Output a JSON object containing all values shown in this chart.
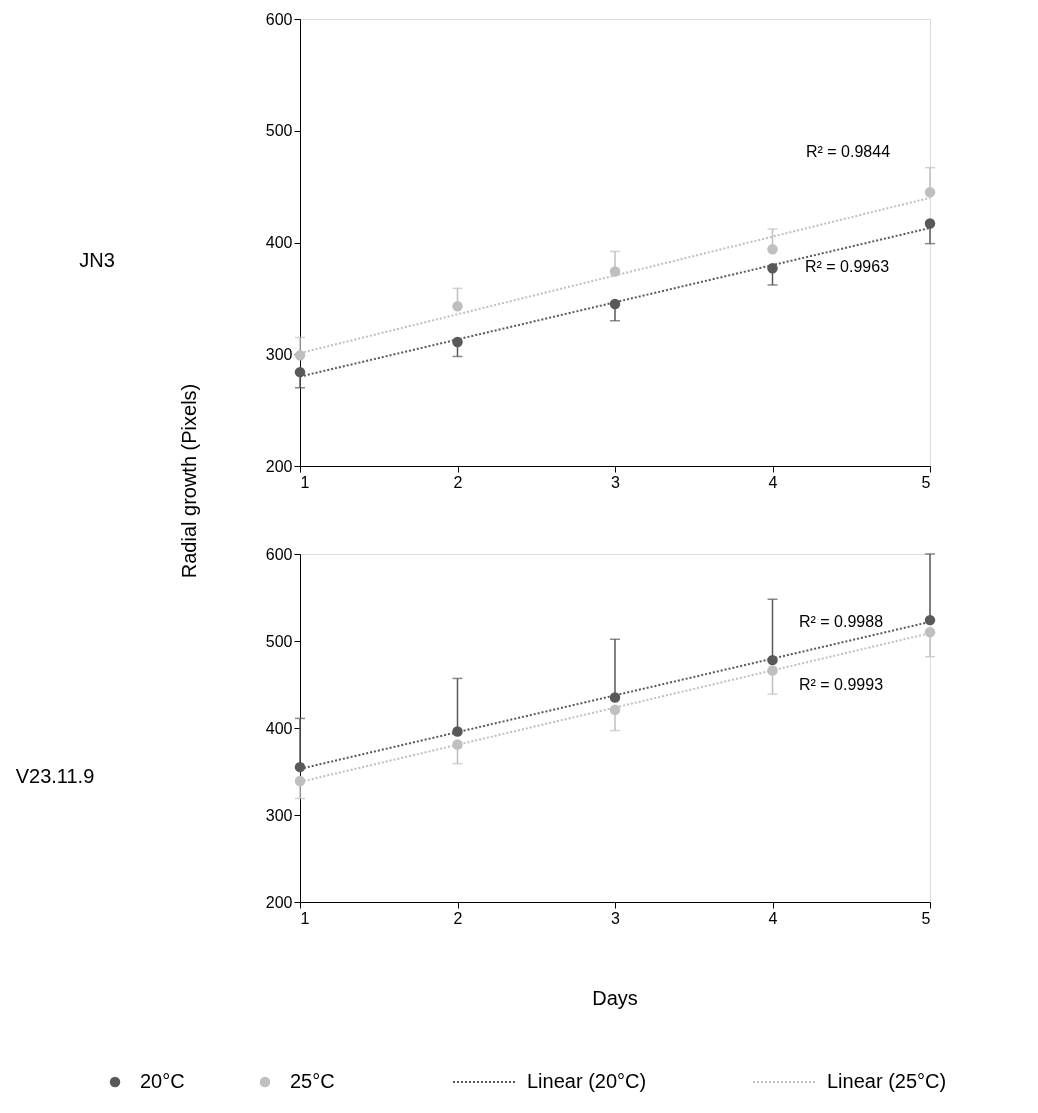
{
  "chart_data": [
    {
      "type": "scatter",
      "ylabel": "Radial growth (Pixels)",
      "xlim": [
        1,
        5
      ],
      "xticks": [
        1,
        2,
        3,
        4,
        5
      ],
      "ylim": [
        200,
        600
      ],
      "yticks": [
        200,
        300,
        400,
        500,
        600
      ],
      "grid": false,
      "series": [
        {
          "color": "#595959",
          "marker": "circle",
          "x": [
            1,
            2,
            3,
            4,
            5
          ],
          "values": [
            284,
            311,
            345,
            377,
            417
          ],
          "errors": [
            [
              270,
              284
            ],
            [
              298,
              311
            ],
            [
              330,
              345
            ],
            [
              362,
              377
            ],
            [
              399,
              417
            ]
          ]
        },
        {
          "color": "#bfbfbf",
          "marker": "circle",
          "x": [
            1,
            2,
            3,
            4,
            5
          ],
          "values": [
            299,
            343,
            374,
            394,
            445
          ],
          "errors": [
            [
              299,
              315
            ],
            [
              343,
              359
            ],
            [
              374,
              392
            ],
            [
              394,
              412
            ],
            [
              445,
              467
            ]
          ]
        },
        {
          "type": "line",
          "marker": "none",
          "line_style": "dotted",
          "color": "#595959",
          "x": [
            1,
            5
          ],
          "values": [
            280,
            413
          ]
        },
        {
          "type": "line",
          "marker": "none",
          "line_style": "dotted",
          "color": "#bfbfbf",
          "x": [
            1,
            5
          ],
          "values": [
            301,
            440
          ]
        }
      ],
      "annotations": [
        "JN3",
        "R² = 0.9844",
        "R² = 0.9963"
      ]
    },
    {
      "type": "scatter",
      "xlabel": "Days",
      "xlim": [
        1,
        5
      ],
      "xticks": [
        1,
        2,
        3,
        4,
        5
      ],
      "ylim": [
        200,
        600
      ],
      "yticks": [
        200,
        300,
        400,
        500,
        600
      ],
      "grid": false,
      "legend": "bottom",
      "series": [
        {
          "name": "20°C",
          "color": "#595959",
          "marker": "circle",
          "x": [
            1,
            2,
            3,
            4,
            5
          ],
          "values": [
            355,
            396,
            435,
            478,
            524
          ],
          "errors": [
            [
              355,
              411
            ],
            [
              396,
              457
            ],
            [
              435,
              502
            ],
            [
              478,
              548
            ],
            [
              524,
              600
            ]
          ]
        },
        {
          "name": "25°C",
          "color": "#bfbfbf",
          "marker": "circle",
          "x": [
            1,
            2,
            3,
            4,
            5
          ],
          "values": [
            339,
            381,
            421,
            466,
            510
          ],
          "errors": [
            [
              319,
              339
            ],
            [
              359,
              381
            ],
            [
              397,
              421
            ],
            [
              439,
              466
            ],
            [
              482,
              510
            ]
          ]
        },
        {
          "name": "Linear (20°C)",
          "type": "line",
          "marker": "none",
          "line_style": "dotted",
          "color": "#595959",
          "x": [
            1,
            5
          ],
          "values": [
            353,
            522
          ]
        },
        {
          "name": "Linear (25°C)",
          "type": "line",
          "marker": "none",
          "line_style": "dotted",
          "color": "#bfbfbf",
          "x": [
            1,
            5
          ],
          "values": [
            338,
            509
          ]
        }
      ],
      "annotations": [
        "V23.11.9",
        "R² = 0.9988",
        "R² = 0.9993"
      ]
    }
  ]
}
